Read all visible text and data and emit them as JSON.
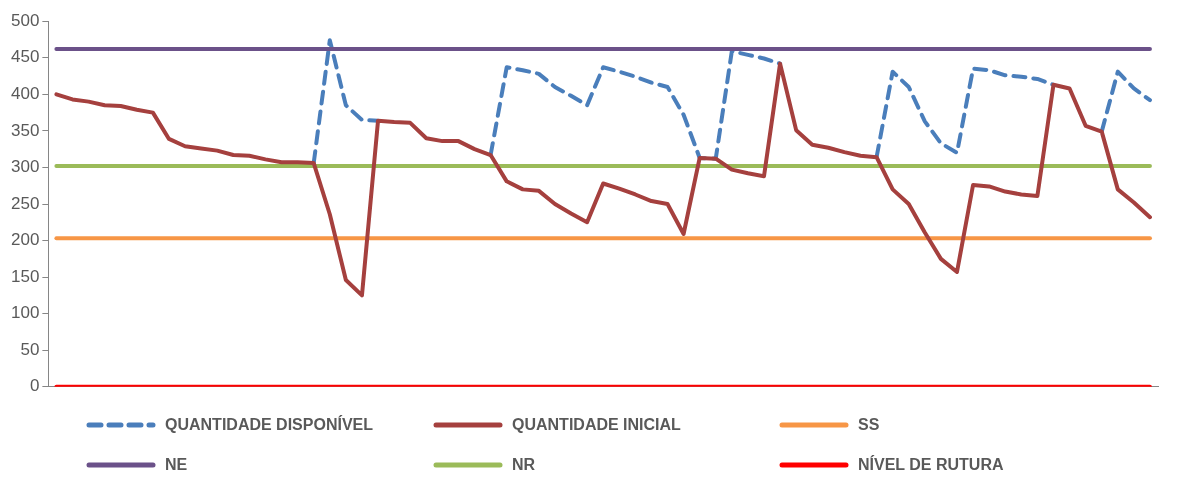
{
  "chart_data": {
    "type": "line",
    "categories": [
      null,
      null,
      null,
      null,
      null,
      null,
      null,
      null,
      null,
      null,
      null,
      null,
      null,
      null,
      null,
      null,
      null,
      null,
      null,
      null,
      null,
      null,
      null,
      null,
      null,
      null,
      null,
      null,
      null,
      null,
      null,
      null,
      null,
      null,
      null,
      null,
      null,
      null,
      null,
      null,
      null,
      null,
      null,
      null,
      null,
      null,
      null,
      null,
      null,
      null,
      null,
      null,
      null,
      null,
      null,
      null,
      null,
      null,
      null,
      null,
      null,
      null,
      null,
      null,
      null,
      null,
      null,
      null,
      null
    ],
    "series": [
      {
        "name": "QUANTIDADE DISPONÍVEL",
        "color": "#4a7ebb",
        "line_style": "dashed",
        "values": [
          null,
          null,
          null,
          null,
          null,
          null,
          null,
          null,
          null,
          null,
          null,
          null,
          null,
          null,
          null,
          null,
          306,
          474,
          385,
          365,
          364,
          null,
          null,
          null,
          null,
          null,
          null,
          317,
          437,
          433,
          428,
          410,
          398,
          385,
          437,
          431,
          424,
          416,
          410,
          372,
          313,
          312,
          459,
          454,
          449,
          442,
          null,
          null,
          null,
          null,
          null,
          314,
          431,
          410,
          363,
          333,
          320,
          435,
          433,
          426,
          424,
          421,
          413,
          null,
          null,
          349,
          431,
          408,
          392
        ]
      },
      {
        "name": "QUANTIDADE INICIAL",
        "color": "#a5403e",
        "values": [
          400,
          393,
          390,
          385,
          384,
          379,
          375,
          339,
          329,
          326,
          323,
          317,
          316,
          311,
          307,
          307,
          306,
          236,
          146,
          125,
          364,
          362,
          361,
          340,
          336,
          336,
          325,
          317,
          281,
          270,
          268,
          250,
          237,
          225,
          278,
          271,
          263,
          254,
          250,
          209,
          313,
          312,
          297,
          292,
          288,
          442,
          351,
          331,
          327,
          321,
          316,
          314,
          270,
          250,
          211,
          175,
          157,
          276,
          274,
          267,
          263,
          261,
          413,
          408,
          357,
          349,
          270,
          252,
          232
        ]
      },
      {
        "name": "SS",
        "color": "#f79646",
        "values": [
          203,
          203,
          203,
          203,
          203,
          203,
          203,
          203,
          203,
          203,
          203,
          203,
          203,
          203,
          203,
          203,
          203,
          203,
          203,
          203,
          203,
          203,
          203,
          203,
          203,
          203,
          203,
          203,
          203,
          203,
          203,
          203,
          203,
          203,
          203,
          203,
          203,
          203,
          203,
          203,
          203,
          203,
          203,
          203,
          203,
          203,
          203,
          203,
          203,
          203,
          203,
          203,
          203,
          203,
          203,
          203,
          203,
          203,
          203,
          203,
          203,
          203,
          203,
          203,
          203,
          203,
          203,
          203,
          203
        ]
      },
      {
        "name": "NE",
        "color": "#6b5189",
        "values": [
          462,
          462,
          462,
          462,
          462,
          462,
          462,
          462,
          462,
          462,
          462,
          462,
          462,
          462,
          462,
          462,
          462,
          462,
          462,
          462,
          462,
          462,
          462,
          462,
          462,
          462,
          462,
          462,
          462,
          462,
          462,
          462,
          462,
          462,
          462,
          462,
          462,
          462,
          462,
          462,
          462,
          462,
          462,
          462,
          462,
          462,
          462,
          462,
          462,
          462,
          462,
          462,
          462,
          462,
          462,
          462,
          462,
          462,
          462,
          462,
          462,
          462,
          462,
          462,
          462,
          462,
          462,
          462,
          462
        ]
      },
      {
        "name": "NR",
        "color": "#9bbb59",
        "values": [
          302,
          302,
          302,
          302,
          302,
          302,
          302,
          302,
          302,
          302,
          302,
          302,
          302,
          302,
          302,
          302,
          302,
          302,
          302,
          302,
          302,
          302,
          302,
          302,
          302,
          302,
          302,
          302,
          302,
          302,
          302,
          302,
          302,
          302,
          302,
          302,
          302,
          302,
          302,
          302,
          302,
          302,
          302,
          302,
          302,
          302,
          302,
          302,
          302,
          302,
          302,
          302,
          302,
          302,
          302,
          302,
          302,
          302,
          302,
          302,
          302,
          302,
          302,
          302,
          302,
          302,
          302,
          302,
          302
        ]
      },
      {
        "name": "NÍVEL DE RUTURA",
        "color": "#ff0000",
        "values": [
          0,
          0,
          0,
          0,
          0,
          0,
          0,
          0,
          0,
          0,
          0,
          0,
          0,
          0,
          0,
          0,
          0,
          0,
          0,
          0,
          0,
          0,
          0,
          0,
          0,
          0,
          0,
          0,
          0,
          0,
          0,
          0,
          0,
          0,
          0,
          0,
          0,
          0,
          0,
          0,
          0,
          0,
          0,
          0,
          0,
          0,
          0,
          0,
          0,
          0,
          0,
          0,
          0,
          0,
          0,
          0,
          0,
          0,
          0,
          0,
          0,
          0,
          0,
          0,
          0,
          0,
          0,
          0,
          0
        ]
      }
    ],
    "ylim": [
      0,
      500
    ],
    "yticks": [
      0,
      50,
      100,
      150,
      200,
      250,
      300,
      350,
      400,
      450,
      500
    ],
    "grid": false,
    "legend": "bottom",
    "marker": "none",
    "line_style": "solid"
  }
}
